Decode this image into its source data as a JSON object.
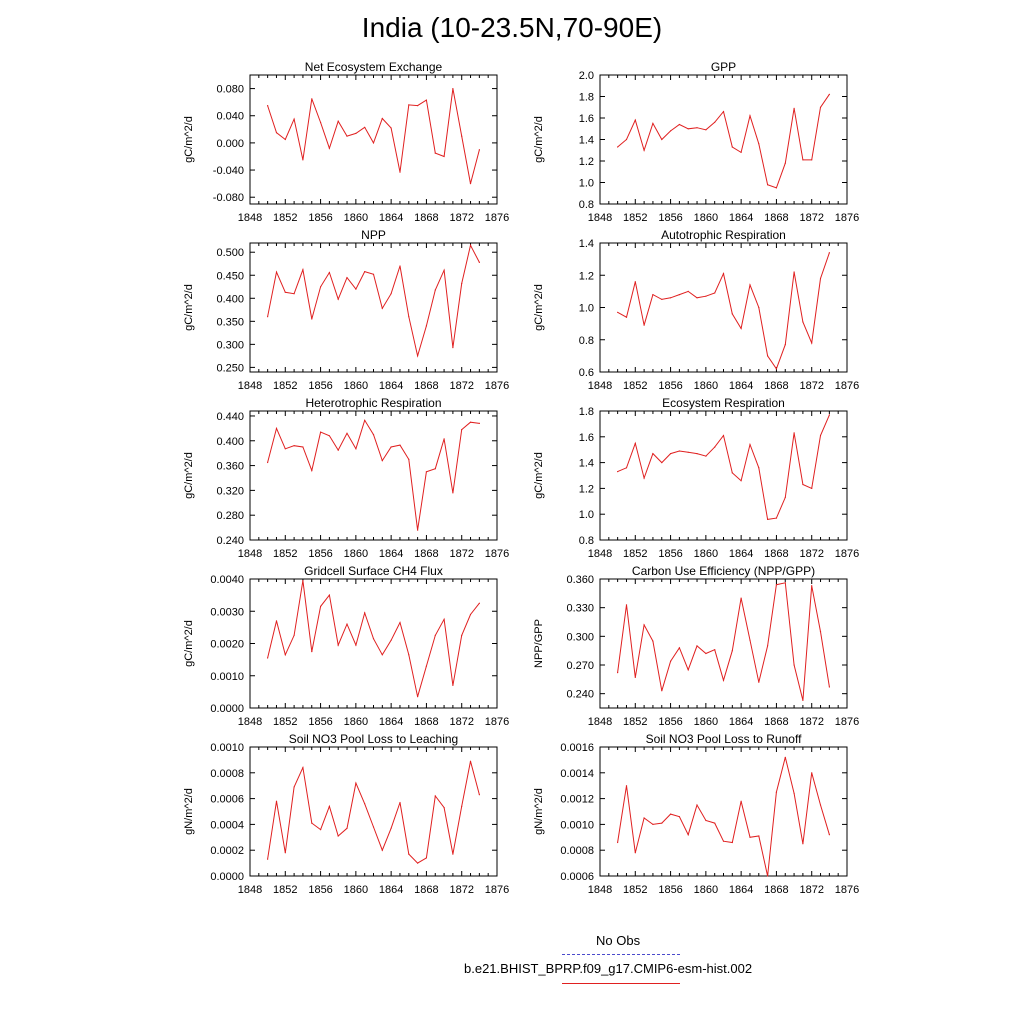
{
  "title": "India (10-23.5N,70-90E)",
  "legend": {
    "entries": [
      {
        "label": "No Obs",
        "color": "#4a4acc",
        "style": "dashed"
      },
      {
        "label": "b.e21.BHIST_BPRP.f09_g17.CMIP6-esm-hist.002",
        "color": "#e02020",
        "style": "solid"
      }
    ]
  },
  "line_color": "#e02020",
  "chart_data": [
    {
      "type": "line",
      "title": "Net Ecosystem Exchange",
      "ylabel": "gC/m^2/d",
      "xlim": [
        1848,
        1876
      ],
      "ylim": [
        -0.09,
        0.1
      ],
      "x_ticks": [
        "1848",
        "1852",
        "1856",
        "1860",
        "1864",
        "1868",
        "1872",
        "1876"
      ],
      "y_ticks": [
        {
          "v": -0.08,
          "label": "-0.080"
        },
        {
          "v": -0.04,
          "label": "-0.040"
        },
        {
          "v": 0.0,
          "label": "0.000"
        },
        {
          "v": 0.04,
          "label": "0.040"
        },
        {
          "v": 0.08,
          "label": "0.080"
        }
      ],
      "x": [
        1850,
        1851,
        1852,
        1853,
        1854,
        1855,
        1856,
        1857,
        1858,
        1859,
        1860,
        1861,
        1862,
        1863,
        1864,
        1865,
        1866,
        1867,
        1868,
        1869,
        1870,
        1871,
        1872,
        1873,
        1874
      ],
      "values": [
        0.055,
        0.015,
        0.005,
        0.035,
        -0.025,
        0.065,
        0.03,
        -0.008,
        0.032,
        0.01,
        0.014,
        0.023,
        0.0,
        0.036,
        0.022,
        -0.043,
        0.056,
        0.055,
        0.063,
        -0.015,
        -0.02,
        0.08,
        0.01,
        -0.06,
        -0.01
      ]
    },
    {
      "type": "line",
      "title": "GPP",
      "ylabel": "gC/m^2/d",
      "xlim": [
        1848,
        1876
      ],
      "ylim": [
        0.8,
        2.0
      ],
      "x_ticks": [
        "1848",
        "1852",
        "1856",
        "1860",
        "1864",
        "1868",
        "1872",
        "1876"
      ],
      "y_ticks": [
        {
          "v": 0.8,
          "label": "0.8"
        },
        {
          "v": 1.0,
          "label": "1.0"
        },
        {
          "v": 1.2,
          "label": "1.2"
        },
        {
          "v": 1.4,
          "label": "1.4"
        },
        {
          "v": 1.6,
          "label": "1.6"
        },
        {
          "v": 1.8,
          "label": "1.8"
        },
        {
          "v": 2.0,
          "label": "2.0"
        }
      ],
      "x": [
        1850,
        1851,
        1852,
        1853,
        1854,
        1855,
        1856,
        1857,
        1858,
        1859,
        1860,
        1861,
        1862,
        1863,
        1864,
        1865,
        1866,
        1867,
        1868,
        1869,
        1870,
        1871,
        1872,
        1873,
        1874
      ],
      "values": [
        1.33,
        1.4,
        1.58,
        1.3,
        1.55,
        1.4,
        1.48,
        1.54,
        1.5,
        1.51,
        1.49,
        1.56,
        1.66,
        1.33,
        1.28,
        1.62,
        1.36,
        0.98,
        0.95,
        1.18,
        1.69,
        1.21,
        1.21,
        1.7,
        1.82
      ]
    },
    {
      "type": "line",
      "title": "NPP",
      "ylabel": "gC/m^2/d",
      "xlim": [
        1848,
        1876
      ],
      "ylim": [
        0.24,
        0.52
      ],
      "x_ticks": [
        "1848",
        "1852",
        "1856",
        "1860",
        "1864",
        "1868",
        "1872",
        "1876"
      ],
      "y_ticks": [
        {
          "v": 0.25,
          "label": "0.250"
        },
        {
          "v": 0.3,
          "label": "0.300"
        },
        {
          "v": 0.35,
          "label": "0.350"
        },
        {
          "v": 0.4,
          "label": "0.400"
        },
        {
          "v": 0.45,
          "label": "0.450"
        },
        {
          "v": 0.5,
          "label": "0.500"
        }
      ],
      "x": [
        1850,
        1851,
        1852,
        1853,
        1854,
        1855,
        1856,
        1857,
        1858,
        1859,
        1860,
        1861,
        1862,
        1863,
        1864,
        1865,
        1866,
        1867,
        1868,
        1869,
        1870,
        1871,
        1872,
        1873,
        1874
      ],
      "values": [
        0.36,
        0.457,
        0.413,
        0.41,
        0.462,
        0.355,
        0.425,
        0.456,
        0.398,
        0.445,
        0.42,
        0.458,
        0.452,
        0.378,
        0.41,
        0.47,
        0.36,
        0.275,
        0.34,
        0.418,
        0.461,
        0.293,
        0.432,
        0.515,
        0.478
      ]
    },
    {
      "type": "line",
      "title": "Autotrophic Respiration",
      "ylabel": "gC/m^2/d",
      "xlim": [
        1848,
        1876
      ],
      "ylim": [
        0.6,
        1.4
      ],
      "x_ticks": [
        "1848",
        "1852",
        "1856",
        "1860",
        "1864",
        "1868",
        "1872",
        "1876"
      ],
      "y_ticks": [
        {
          "v": 0.6,
          "label": "0.6"
        },
        {
          "v": 0.8,
          "label": "0.8"
        },
        {
          "v": 1.0,
          "label": "1.0"
        },
        {
          "v": 1.2,
          "label": "1.2"
        },
        {
          "v": 1.4,
          "label": "1.4"
        }
      ],
      "x": [
        1850,
        1851,
        1852,
        1853,
        1854,
        1855,
        1856,
        1857,
        1858,
        1859,
        1860,
        1861,
        1862,
        1863,
        1864,
        1865,
        1866,
        1867,
        1868,
        1869,
        1870,
        1871,
        1872,
        1873,
        1874
      ],
      "values": [
        0.97,
        0.94,
        1.16,
        0.89,
        1.08,
        1.05,
        1.06,
        1.08,
        1.1,
        1.06,
        1.07,
        1.09,
        1.21,
        0.96,
        0.87,
        1.14,
        1.0,
        0.7,
        0.62,
        0.77,
        1.22,
        0.91,
        0.78,
        1.18,
        1.34
      ]
    },
    {
      "type": "line",
      "title": "Heterotrophic Respiration",
      "ylabel": "gC/m^2/d",
      "xlim": [
        1848,
        1876
      ],
      "ylim": [
        0.24,
        0.448
      ],
      "x_ticks": [
        "1848",
        "1852",
        "1856",
        "1860",
        "1864",
        "1868",
        "1872",
        "1876"
      ],
      "y_ticks": [
        {
          "v": 0.24,
          "label": "0.240"
        },
        {
          "v": 0.28,
          "label": "0.280"
        },
        {
          "v": 0.32,
          "label": "0.320"
        },
        {
          "v": 0.36,
          "label": "0.360"
        },
        {
          "v": 0.4,
          "label": "0.400"
        },
        {
          "v": 0.44,
          "label": "0.440"
        }
      ],
      "x": [
        1850,
        1851,
        1852,
        1853,
        1854,
        1855,
        1856,
        1857,
        1858,
        1859,
        1860,
        1861,
        1862,
        1863,
        1864,
        1865,
        1866,
        1867,
        1868,
        1869,
        1870,
        1871,
        1872,
        1873,
        1874
      ],
      "values": [
        0.365,
        0.42,
        0.387,
        0.392,
        0.39,
        0.352,
        0.414,
        0.408,
        0.385,
        0.412,
        0.387,
        0.433,
        0.41,
        0.368,
        0.39,
        0.393,
        0.37,
        0.256,
        0.35,
        0.355,
        0.403,
        0.316,
        0.418,
        0.43,
        0.428
      ]
    },
    {
      "type": "line",
      "title": "Ecosystem Respiration",
      "ylabel": "gC/m^2/d",
      "xlim": [
        1848,
        1876
      ],
      "ylim": [
        0.8,
        1.8
      ],
      "x_ticks": [
        "1848",
        "1852",
        "1856",
        "1860",
        "1864",
        "1868",
        "1872",
        "1876"
      ],
      "y_ticks": [
        {
          "v": 0.8,
          "label": "0.8"
        },
        {
          "v": 1.0,
          "label": "1.0"
        },
        {
          "v": 1.2,
          "label": "1.2"
        },
        {
          "v": 1.4,
          "label": "1.4"
        },
        {
          "v": 1.6,
          "label": "1.6"
        },
        {
          "v": 1.8,
          "label": "1.8"
        }
      ],
      "x": [
        1850,
        1851,
        1852,
        1853,
        1854,
        1855,
        1856,
        1857,
        1858,
        1859,
        1860,
        1861,
        1862,
        1863,
        1864,
        1865,
        1866,
        1867,
        1868,
        1869,
        1870,
        1871,
        1872,
        1873,
        1874
      ],
      "values": [
        1.33,
        1.36,
        1.55,
        1.28,
        1.47,
        1.4,
        1.47,
        1.49,
        1.48,
        1.47,
        1.45,
        1.52,
        1.61,
        1.32,
        1.26,
        1.54,
        1.36,
        0.96,
        0.97,
        1.13,
        1.63,
        1.23,
        1.2,
        1.61,
        1.77
      ]
    },
    {
      "type": "line",
      "title": "Gridcell Surface CH4 Flux",
      "ylabel": "gC/m^2/d",
      "xlim": [
        1848,
        1876
      ],
      "ylim": [
        0.0,
        0.004
      ],
      "x_ticks": [
        "1848",
        "1852",
        "1856",
        "1860",
        "1864",
        "1868",
        "1872",
        "1876"
      ],
      "y_ticks": [
        {
          "v": 0.0,
          "label": "0.0000"
        },
        {
          "v": 0.001,
          "label": "0.0010"
        },
        {
          "v": 0.002,
          "label": "0.0020"
        },
        {
          "v": 0.003,
          "label": "0.0030"
        },
        {
          "v": 0.004,
          "label": "0.0040"
        }
      ],
      "x": [
        1850,
        1851,
        1852,
        1853,
        1854,
        1855,
        1856,
        1857,
        1858,
        1859,
        1860,
        1861,
        1862,
        1863,
        1864,
        1865,
        1866,
        1867,
        1868,
        1869,
        1870,
        1871,
        1872,
        1873,
        1874
      ],
      "values": [
        0.00155,
        0.0027,
        0.00165,
        0.00225,
        0.00395,
        0.00175,
        0.00315,
        0.0035,
        0.00195,
        0.0026,
        0.00195,
        0.00295,
        0.00215,
        0.00165,
        0.0021,
        0.00265,
        0.00165,
        0.00035,
        0.0013,
        0.00225,
        0.00275,
        0.0007,
        0.00225,
        0.0029,
        0.00325
      ]
    },
    {
      "type": "line",
      "title": "Carbon Use Efficiency (NPP/GPP)",
      "ylabel": "NPP/GPP",
      "xlim": [
        1848,
        1876
      ],
      "ylim": [
        0.225,
        0.36
      ],
      "x_ticks": [
        "1848",
        "1852",
        "1856",
        "1860",
        "1864",
        "1868",
        "1872",
        "1876"
      ],
      "y_ticks": [
        {
          "v": 0.24,
          "label": "0.240"
        },
        {
          "v": 0.27,
          "label": "0.270"
        },
        {
          "v": 0.3,
          "label": "0.300"
        },
        {
          "v": 0.33,
          "label": "0.330"
        },
        {
          "v": 0.36,
          "label": "0.360"
        }
      ],
      "x": [
        1850,
        1851,
        1852,
        1853,
        1854,
        1855,
        1856,
        1857,
        1858,
        1859,
        1860,
        1861,
        1862,
        1863,
        1864,
        1865,
        1866,
        1867,
        1868,
        1869,
        1870,
        1871,
        1872,
        1873,
        1874
      ],
      "values": [
        0.262,
        0.333,
        0.257,
        0.312,
        0.295,
        0.243,
        0.274,
        0.288,
        0.265,
        0.29,
        0.282,
        0.286,
        0.254,
        0.285,
        0.34,
        0.296,
        0.252,
        0.29,
        0.354,
        0.356,
        0.27,
        0.233,
        0.353,
        0.305,
        0.247
      ]
    },
    {
      "type": "line",
      "title": "Soil NO3 Pool Loss to Leaching",
      "ylabel": "gN/m^2/d",
      "xlim": [
        1848,
        1876
      ],
      "ylim": [
        0.0,
        0.001
      ],
      "x_ticks": [
        "1848",
        "1852",
        "1856",
        "1860",
        "1864",
        "1868",
        "1872",
        "1876"
      ],
      "y_ticks": [
        {
          "v": 0.0,
          "label": "0.0000"
        },
        {
          "v": 0.0002,
          "label": "0.0002"
        },
        {
          "v": 0.0004,
          "label": "0.0004"
        },
        {
          "v": 0.0006,
          "label": "0.0006"
        },
        {
          "v": 0.0008,
          "label": "0.0008"
        },
        {
          "v": 0.001,
          "label": "0.0010"
        }
      ],
      "x": [
        1850,
        1851,
        1852,
        1853,
        1854,
        1855,
        1856,
        1857,
        1858,
        1859,
        1860,
        1861,
        1862,
        1863,
        1864,
        1865,
        1866,
        1867,
        1868,
        1869,
        1870,
        1871,
        1872,
        1873,
        1874
      ],
      "values": [
        0.00013,
        0.00058,
        0.00018,
        0.00069,
        0.00084,
        0.00041,
        0.00036,
        0.00054,
        0.00031,
        0.00037,
        0.00072,
        0.00056,
        0.00038,
        0.0002,
        0.00037,
        0.00057,
        0.00017,
        0.0001,
        0.00014,
        0.00062,
        0.00053,
        0.00017,
        0.00054,
        0.00089,
        0.00063
      ]
    },
    {
      "type": "line",
      "title": "Soil NO3 Pool Loss to Runoff",
      "ylabel": "gN/m^2/d",
      "xlim": [
        1848,
        1876
      ],
      "ylim": [
        0.0006,
        0.0016
      ],
      "x_ticks": [
        "1848",
        "1852",
        "1856",
        "1860",
        "1864",
        "1868",
        "1872",
        "1876"
      ],
      "y_ticks": [
        {
          "v": 0.0006,
          "label": "0.0006"
        },
        {
          "v": 0.0008,
          "label": "0.0008"
        },
        {
          "v": 0.001,
          "label": "0.0010"
        },
        {
          "v": 0.0012,
          "label": "0.0012"
        },
        {
          "v": 0.0014,
          "label": "0.0014"
        },
        {
          "v": 0.0016,
          "label": "0.0016"
        }
      ],
      "x": [
        1850,
        1851,
        1852,
        1853,
        1854,
        1855,
        1856,
        1857,
        1858,
        1859,
        1860,
        1861,
        1862,
        1863,
        1864,
        1865,
        1866,
        1867,
        1868,
        1869,
        1870,
        1871,
        1872,
        1873,
        1874
      ],
      "values": [
        0.00086,
        0.0013,
        0.00078,
        0.00105,
        0.001,
        0.00101,
        0.00108,
        0.00106,
        0.00092,
        0.00115,
        0.00103,
        0.00101,
        0.00087,
        0.00086,
        0.00118,
        0.0009,
        0.00091,
        0.0006,
        0.00125,
        0.00152,
        0.00124,
        0.00085,
        0.0014,
        0.00115,
        0.00092
      ]
    }
  ]
}
